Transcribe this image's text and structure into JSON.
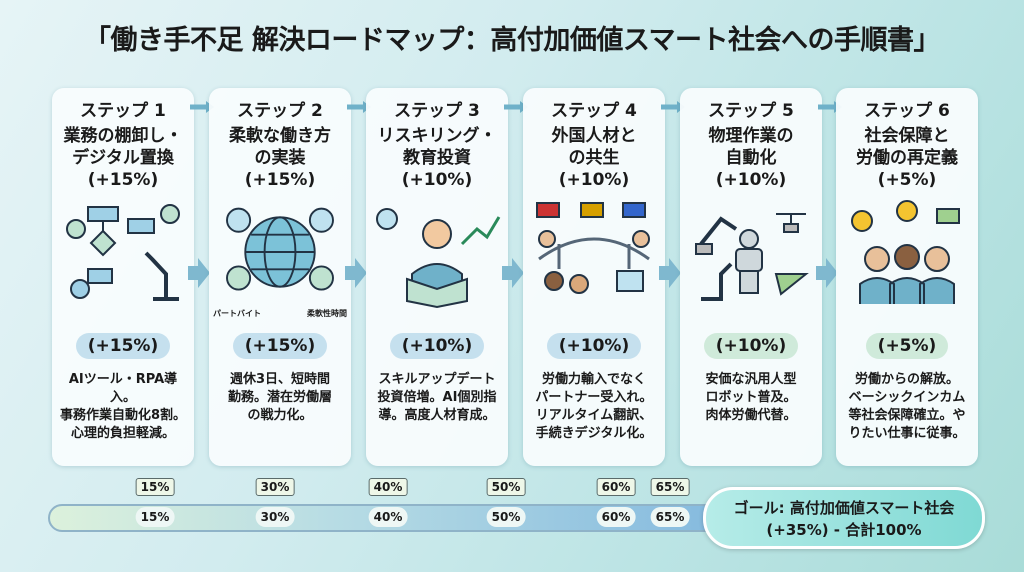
{
  "title": "「働き手不足 解決ロードマップ：高付加価値スマート社会への手順書」",
  "steps": [
    {
      "step": "ステップ 1",
      "head1": "業務の棚卸し・",
      "head2": "デジタル置換",
      "pct": "(+15%)",
      "badge": "(+15%)",
      "desc": [
        "AIツール・RPA導入。",
        "事務作業自動化8割。",
        "心理的負担軽減。"
      ],
      "icon": "flowchart-robot-arm-icon"
    },
    {
      "step": "ステップ 2",
      "head1": "柔軟な働き方",
      "head2": "の実装",
      "pct": "(+15%)",
      "badge": "(+15%)",
      "desc": [
        "週休3日、短時間",
        "勤務。潜在労働層",
        "の戦力化。"
      ],
      "icon": "globe-network-icon",
      "labels": [
        "パートバイト",
        "柔軟性時間"
      ]
    },
    {
      "step": "ステップ 3",
      "head1": "リスキリング・",
      "head2": "教育投資",
      "pct": "(+10%)",
      "badge": "(+10%)",
      "desc": [
        "スキルアップデート",
        "投資倍増。AI個別指",
        "導。高度人材育成。"
      ],
      "icon": "student-reading-icon"
    },
    {
      "step": "ステップ 4",
      "head1": "外国人材と",
      "head2": "の共生",
      "pct": "(+10%)",
      "badge": "(+10%)",
      "desc": [
        "労働力輸入でなく",
        "パートナー受入れ。",
        "リアルタイム翻訳、",
        "手続きデジタル化。"
      ],
      "icon": "bridge-people-icon"
    },
    {
      "step": "ステップ 5",
      "head1": "物理作業の",
      "head2": "自動化",
      "pct": "(+10%)",
      "badge": "(+10%)",
      "desc": [
        "安価な汎用人型",
        "ロボット普及。",
        "肉体労働代替。"
      ],
      "icon": "robots-drones-icon"
    },
    {
      "step": "ステップ 6",
      "head1": "社会保障と",
      "head2": "労働の再定義",
      "pct": "(+5%)",
      "badge": "(+5%)",
      "desc": [
        "労働からの解放。",
        "ベーシックインカム",
        "等社会保障確立。や",
        "りたい仕事に従事。"
      ],
      "icon": "happy-people-money-icon"
    }
  ],
  "progress": {
    "markers": [
      "15%",
      "30%",
      "40%",
      "50%",
      "60%",
      "65%"
    ],
    "values": [
      15,
      30,
      40,
      50,
      60,
      65
    ]
  },
  "goal": {
    "line1": "ゴール: 高付加価値スマート社会",
    "line2": "(+35%) - 合計100%"
  },
  "colors": {
    "badge_blue": "#c5e0ee",
    "badge_green": "#cfeada",
    "arrow": "#6fb1c9"
  }
}
